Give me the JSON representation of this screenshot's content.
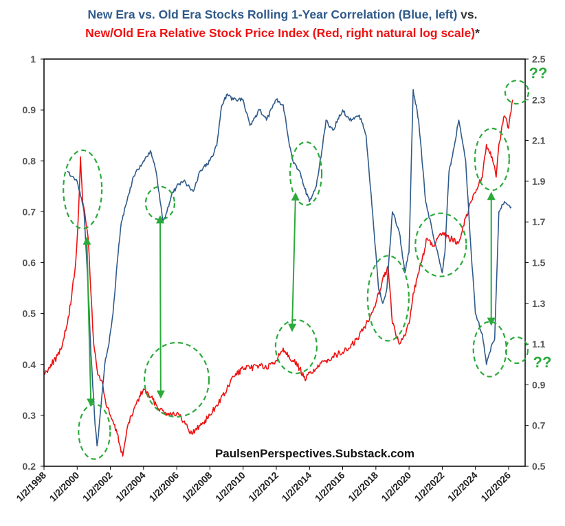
{
  "title": {
    "line1_blue": "New Era vs. Old Era Stocks Rolling 1-Year Correlation (Blue, left)",
    "line1_suffix": " vs.",
    "line2_red": "New/Old Era Relative Stock Price Index (Red, right natural log scale)",
    "line2_suffix": "*"
  },
  "watermark": "PaulsenPerspectives.Substack.com",
  "annotations": {
    "question_top": "??",
    "question_bottom": "??"
  },
  "colors": {
    "blue_series": "#2f5a8a",
    "red_series": "#ee1111",
    "annotation": "#2aaa3a",
    "axis": "#000000"
  },
  "chart_data": {
    "type": "line",
    "x_axis": {
      "type": "date",
      "range": [
        "1998-01-02",
        "2026-12-31"
      ],
      "tick_labels": [
        "1/2/1998",
        "1/2/2000",
        "1/2/2002",
        "1/2/2004",
        "1/2/2006",
        "1/2/2008",
        "1/2/2010",
        "1/2/2012",
        "1/2/2014",
        "1/2/2016",
        "1/2/2018",
        "1/2/2020",
        "1/2/2022",
        "1/2/2024",
        "1/2/2026"
      ]
    },
    "y_left": {
      "range": [
        0.2,
        1.0
      ],
      "ticks": [
        "0.2",
        "0.3",
        "0.4",
        "0.5",
        "0.6",
        "0.7",
        "0.8",
        "0.9",
        "1"
      ]
    },
    "y_right": {
      "range": [
        0.5,
        2.5
      ],
      "ticks": [
        "0.5",
        "0.7",
        "0.9",
        "1.1",
        "1.3",
        "1.5",
        "1.7",
        "1.9",
        "2.1",
        "2.3",
        "2.5"
      ],
      "scale": "natural log"
    },
    "grid": false,
    "series": [
      {
        "axis": "left",
        "color": "#2f5a8a",
        "points": [
          [
            "1999-06-01",
            0.78
          ],
          [
            "1999-09-01",
            0.77
          ],
          [
            "2000-01-01",
            0.76
          ],
          [
            "2000-03-01",
            0.74
          ],
          [
            "2000-06-01",
            0.7
          ],
          [
            "2000-09-01",
            0.55
          ],
          [
            "2000-11-01",
            0.42
          ],
          [
            "2001-01-01",
            0.33
          ],
          [
            "2001-02-01",
            0.28
          ],
          [
            "2001-03-15",
            0.24
          ],
          [
            "2001-05-01",
            0.28
          ],
          [
            "2001-07-01",
            0.34
          ],
          [
            "2001-09-01",
            0.4
          ],
          [
            "2001-12-01",
            0.44
          ],
          [
            "2002-03-01",
            0.5
          ],
          [
            "2002-06-01",
            0.6
          ],
          [
            "2002-09-01",
            0.68
          ],
          [
            "2003-01-01",
            0.72
          ],
          [
            "2003-06-01",
            0.77
          ],
          [
            "2004-01-01",
            0.8
          ],
          [
            "2004-06-01",
            0.82
          ],
          [
            "2004-10-01",
            0.78
          ],
          [
            "2005-01-01",
            0.72
          ],
          [
            "2005-03-01",
            0.68
          ],
          [
            "2005-06-01",
            0.7
          ],
          [
            "2005-09-01",
            0.73
          ],
          [
            "2006-01-01",
            0.75
          ],
          [
            "2006-06-01",
            0.76
          ],
          [
            "2007-01-01",
            0.74
          ],
          [
            "2007-06-01",
            0.78
          ],
          [
            "2008-01-01",
            0.8
          ],
          [
            "2008-06-01",
            0.83
          ],
          [
            "2008-09-01",
            0.9
          ],
          [
            "2009-01-01",
            0.93
          ],
          [
            "2009-06-01",
            0.92
          ],
          [
            "2010-01-01",
            0.92
          ],
          [
            "2010-06-01",
            0.87
          ],
          [
            "2011-01-01",
            0.9
          ],
          [
            "2011-06-01",
            0.88
          ],
          [
            "2012-01-01",
            0.92
          ],
          [
            "2012-06-01",
            0.91
          ],
          [
            "2012-10-01",
            0.84
          ],
          [
            "2013-01-01",
            0.8
          ],
          [
            "2013-06-01",
            0.78
          ],
          [
            "2013-09-01",
            0.75
          ],
          [
            "2014-01-01",
            0.72
          ],
          [
            "2014-06-01",
            0.75
          ],
          [
            "2014-10-01",
            0.82
          ],
          [
            "2015-01-01",
            0.88
          ],
          [
            "2015-06-01",
            0.86
          ],
          [
            "2016-01-01",
            0.9
          ],
          [
            "2016-06-01",
            0.88
          ],
          [
            "2017-01-01",
            0.89
          ],
          [
            "2017-06-01",
            0.85
          ],
          [
            "2017-09-01",
            0.75
          ],
          [
            "2018-01-01",
            0.62
          ],
          [
            "2018-03-01",
            0.55
          ],
          [
            "2018-06-01",
            0.52
          ],
          [
            "2018-09-01",
            0.55
          ],
          [
            "2019-01-01",
            0.7
          ],
          [
            "2019-06-01",
            0.66
          ],
          [
            "2019-10-01",
            0.58
          ],
          [
            "2020-01-01",
            0.62
          ],
          [
            "2020-04-01",
            0.94
          ],
          [
            "2020-08-01",
            0.88
          ],
          [
            "2021-01-01",
            0.72
          ],
          [
            "2021-06-01",
            0.66
          ],
          [
            "2022-01-01",
            0.58
          ],
          [
            "2022-03-01",
            0.62
          ],
          [
            "2022-06-01",
            0.78
          ],
          [
            "2022-09-01",
            0.82
          ],
          [
            "2023-01-01",
            0.88
          ],
          [
            "2023-06-01",
            0.8
          ],
          [
            "2023-10-01",
            0.62
          ],
          [
            "2024-01-01",
            0.5
          ],
          [
            "2024-06-01",
            0.46
          ],
          [
            "2024-09-01",
            0.4
          ],
          [
            "2025-01-01",
            0.44
          ],
          [
            "2025-03-01",
            0.45
          ],
          [
            "2025-06-01",
            0.7
          ],
          [
            "2025-10-01",
            0.72
          ],
          [
            "2026-03-01",
            0.71
          ]
        ]
      },
      {
        "axis": "right",
        "color": "#ee1111",
        "points": [
          [
            "1998-01-02",
            0.95
          ],
          [
            "1998-06-01",
            1.0
          ],
          [
            "1998-12-01",
            1.05
          ],
          [
            "1999-03-01",
            1.12
          ],
          [
            "1999-06-01",
            1.2
          ],
          [
            "1999-09-01",
            1.33
          ],
          [
            "1999-12-01",
            1.5
          ],
          [
            "2000-02-01",
            1.75
          ],
          [
            "2000-03-15",
            2.02
          ],
          [
            "2000-05-01",
            1.8
          ],
          [
            "2000-07-01",
            1.72
          ],
          [
            "2000-09-01",
            1.62
          ],
          [
            "2000-11-01",
            1.35
          ],
          [
            "2001-01-01",
            1.1
          ],
          [
            "2001-04-01",
            0.95
          ],
          [
            "2001-07-01",
            0.92
          ],
          [
            "2001-10-01",
            0.8
          ],
          [
            "2002-01-01",
            0.75
          ],
          [
            "2002-06-01",
            0.66
          ],
          [
            "2002-10-01",
            0.55
          ],
          [
            "2003-01-01",
            0.68
          ],
          [
            "2003-06-01",
            0.78
          ],
          [
            "2004-01-01",
            0.88
          ],
          [
            "2004-06-01",
            0.84
          ],
          [
            "2005-01-01",
            0.78
          ],
          [
            "2005-06-01",
            0.76
          ],
          [
            "2006-01-01",
            0.76
          ],
          [
            "2006-06-01",
            0.72
          ],
          [
            "2006-12-01",
            0.66
          ],
          [
            "2007-06-01",
            0.7
          ],
          [
            "2008-01-01",
            0.75
          ],
          [
            "2008-06-01",
            0.8
          ],
          [
            "2008-12-01",
            0.86
          ],
          [
            "2009-06-01",
            0.94
          ],
          [
            "2010-01-01",
            0.98
          ],
          [
            "2010-06-01",
            0.98
          ],
          [
            "2011-01-01",
            1.0
          ],
          [
            "2011-06-01",
            0.98
          ],
          [
            "2012-01-01",
            1.02
          ],
          [
            "2012-06-01",
            1.08
          ],
          [
            "2013-01-01",
            1.02
          ],
          [
            "2013-06-01",
            0.98
          ],
          [
            "2013-10-01",
            0.92
          ],
          [
            "2014-01-01",
            0.96
          ],
          [
            "2014-06-01",
            0.98
          ],
          [
            "2015-01-01",
            1.02
          ],
          [
            "2015-06-01",
            1.04
          ],
          [
            "2016-01-01",
            1.06
          ],
          [
            "2016-06-01",
            1.08
          ],
          [
            "2017-01-01",
            1.14
          ],
          [
            "2017-06-01",
            1.2
          ],
          [
            "2018-01-01",
            1.3
          ],
          [
            "2018-06-01",
            1.42
          ],
          [
            "2018-10-01",
            1.48
          ],
          [
            "2019-01-01",
            1.2
          ],
          [
            "2019-06-01",
            1.1
          ],
          [
            "2019-10-01",
            1.14
          ],
          [
            "2020-01-01",
            1.2
          ],
          [
            "2020-04-01",
            1.35
          ],
          [
            "2020-10-01",
            1.5
          ],
          [
            "2021-02-01",
            1.62
          ],
          [
            "2021-06-01",
            1.58
          ],
          [
            "2022-01-01",
            1.64
          ],
          [
            "2022-06-01",
            1.62
          ],
          [
            "2023-01-01",
            1.6
          ],
          [
            "2023-06-01",
            1.72
          ],
          [
            "2023-12-01",
            1.84
          ],
          [
            "2024-06-01",
            1.92
          ],
          [
            "2024-09-01",
            2.08
          ],
          [
            "2025-01-01",
            2.02
          ],
          [
            "2025-04-01",
            1.92
          ],
          [
            "2025-06-01",
            2.08
          ],
          [
            "2025-10-01",
            2.22
          ],
          [
            "2026-01-01",
            2.16
          ],
          [
            "2026-04-01",
            2.3
          ]
        ]
      }
    ]
  }
}
